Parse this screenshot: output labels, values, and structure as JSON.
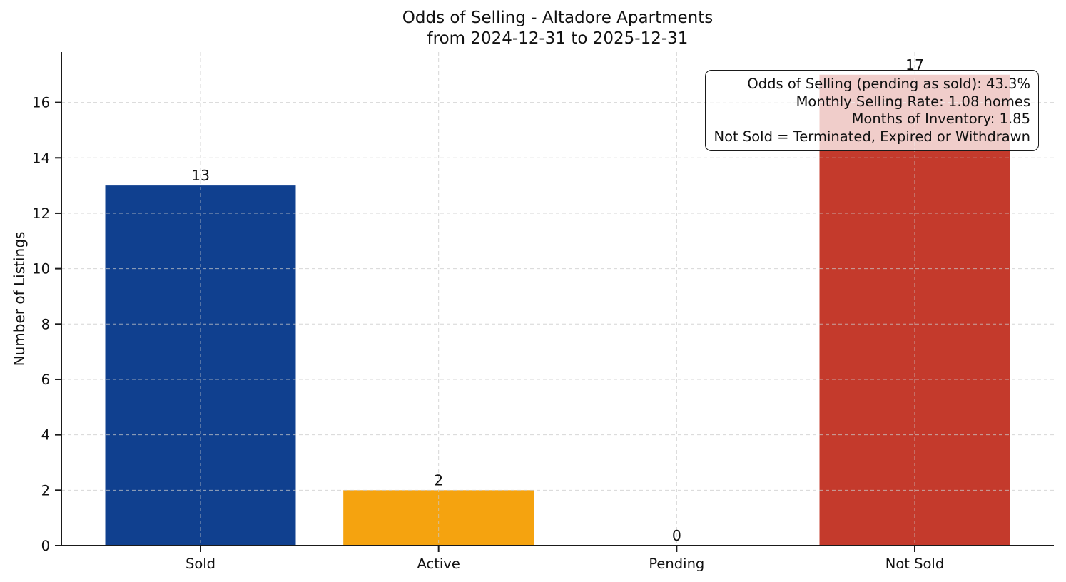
{
  "chart_data": {
    "type": "bar",
    "title_line1": "Odds of Selling - Altadore Apartments",
    "title_line2": "from 2024-12-31 to 2025-12-31",
    "ylabel": "Number of Listings",
    "xlabel": "",
    "categories": [
      "Sold",
      "Active",
      "Pending",
      "Not Sold"
    ],
    "values": [
      13,
      2,
      0,
      17
    ],
    "value_labels": [
      "13",
      "2",
      "0",
      "17"
    ],
    "bar_colors": [
      "#10408F",
      "#F5A30F",
      null,
      "#C43A2C"
    ],
    "ylim": [
      0,
      17.8
    ],
    "yticks": [
      0,
      2,
      4,
      6,
      8,
      10,
      12,
      14,
      16
    ],
    "grid": {
      "horizontal": true,
      "vertical": true,
      "style": "dashed"
    },
    "legend": "none",
    "annotation_lines": [
      "Odds of Selling (pending as sold): 43.3%",
      "Monthly Selling Rate: 1.08 homes",
      "Months of Inventory: 1.85",
      "Not Sold = Terminated, Expired or Withdrawn"
    ],
    "colors": {
      "axis": "#1a1a1a",
      "grid": "#c8c8c8",
      "text": "#111111",
      "background": "#ffffff"
    }
  }
}
